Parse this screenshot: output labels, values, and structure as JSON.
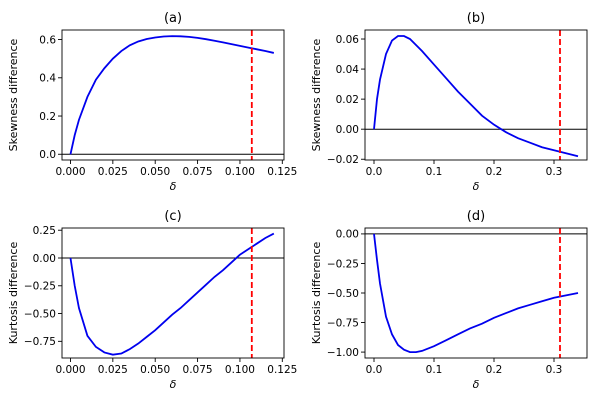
{
  "chart_data": [
    {
      "type": "line",
      "title": "(a)",
      "xlabel": "δ",
      "ylabel": "Skewness difference",
      "xlim": [
        -0.005,
        0.126
      ],
      "ylim": [
        -0.03,
        0.65
      ],
      "xticks": [
        0.0,
        0.025,
        0.05,
        0.075,
        0.1,
        0.125
      ],
      "xtick_labels": [
        "0.000",
        "0.025",
        "0.050",
        "0.075",
        "0.100",
        "0.125"
      ],
      "yticks": [
        0.0,
        0.2,
        0.4,
        0.6
      ],
      "ytick_labels": [
        "0.0",
        "0.2",
        "0.4",
        "0.6"
      ],
      "hline": 0,
      "vline": 0.107,
      "series": [
        {
          "name": "difference",
          "color": "#0000ee",
          "x": [
            0,
            0.0025,
            0.005,
            0.01,
            0.015,
            0.02,
            0.025,
            0.03,
            0.035,
            0.04,
            0.045,
            0.05,
            0.055,
            0.06,
            0.065,
            0.07,
            0.075,
            0.08,
            0.085,
            0.09,
            0.095,
            0.1,
            0.105,
            0.11,
            0.115,
            0.12
          ],
          "y": [
            0,
            0.1,
            0.18,
            0.3,
            0.39,
            0.45,
            0.5,
            0.54,
            0.57,
            0.59,
            0.603,
            0.611,
            0.616,
            0.618,
            0.617,
            0.614,
            0.609,
            0.602,
            0.594,
            0.585,
            0.576,
            0.567,
            0.558,
            0.549,
            0.54,
            0.53
          ]
        }
      ]
    },
    {
      "type": "line",
      "title": "(b)",
      "xlabel": "δ",
      "ylabel": "Skewness difference",
      "xlim": [
        -0.015,
        0.355
      ],
      "ylim": [
        -0.0205,
        0.066
      ],
      "xticks": [
        0.0,
        0.1,
        0.2,
        0.3
      ],
      "xtick_labels": [
        "0.0",
        "0.1",
        "0.2",
        "0.3"
      ],
      "yticks": [
        -0.02,
        0.0,
        0.02,
        0.04,
        0.06
      ],
      "ytick_labels": [
        "−0.02",
        "0.00",
        "0.02",
        "0.04",
        "0.06"
      ],
      "hline": 0,
      "vline": 0.31,
      "series": [
        {
          "name": "difference",
          "color": "#0000ee",
          "x": [
            0,
            0.005,
            0.01,
            0.02,
            0.03,
            0.04,
            0.05,
            0.06,
            0.07,
            0.08,
            0.1,
            0.12,
            0.14,
            0.16,
            0.18,
            0.2,
            0.22,
            0.24,
            0.26,
            0.28,
            0.3,
            0.32,
            0.34
          ],
          "y": [
            0,
            0.02,
            0.033,
            0.05,
            0.059,
            0.062,
            0.062,
            0.06,
            0.056,
            0.052,
            0.043,
            0.034,
            0.025,
            0.017,
            0.009,
            0.003,
            -0.002,
            -0.006,
            -0.009,
            -0.012,
            -0.014,
            -0.016,
            -0.018
          ]
        }
      ]
    },
    {
      "type": "line",
      "title": "(c)",
      "xlabel": "δ",
      "ylabel": "Kurtosis difference",
      "xlim": [
        -0.005,
        0.126
      ],
      "ylim": [
        -0.9,
        0.27
      ],
      "xticks": [
        0.0,
        0.025,
        0.05,
        0.075,
        0.1,
        0.125
      ],
      "xtick_labels": [
        "0.000",
        "0.025",
        "0.050",
        "0.075",
        "0.100",
        "0.125"
      ],
      "yticks": [
        -0.75,
        -0.5,
        -0.25,
        0.0,
        0.25
      ],
      "ytick_labels": [
        "−0.75",
        "−0.50",
        "−0.25",
        "0.00",
        "0.25"
      ],
      "hline": 0,
      "vline": 0.107,
      "series": [
        {
          "name": "difference",
          "color": "#0000ee",
          "x": [
            0,
            0.0025,
            0.005,
            0.01,
            0.015,
            0.02,
            0.025,
            0.03,
            0.035,
            0.04,
            0.045,
            0.05,
            0.055,
            0.06,
            0.065,
            0.07,
            0.075,
            0.08,
            0.085,
            0.09,
            0.095,
            0.1,
            0.105,
            0.11,
            0.115,
            0.12
          ],
          "y": [
            0,
            -0.25,
            -0.45,
            -0.7,
            -0.8,
            -0.85,
            -0.87,
            -0.86,
            -0.82,
            -0.77,
            -0.71,
            -0.65,
            -0.58,
            -0.51,
            -0.45,
            -0.38,
            -0.31,
            -0.24,
            -0.17,
            -0.11,
            -0.04,
            0.03,
            0.08,
            0.13,
            0.18,
            0.22
          ]
        }
      ]
    },
    {
      "type": "line",
      "title": "(d)",
      "xlabel": "δ",
      "ylabel": "Kurtosis difference",
      "xlim": [
        -0.015,
        0.355
      ],
      "ylim": [
        -1.05,
        0.05
      ],
      "xticks": [
        0.0,
        0.1,
        0.2,
        0.3
      ],
      "xtick_labels": [
        "0.0",
        "0.1",
        "0.2",
        "0.3"
      ],
      "yticks": [
        -1.0,
        -0.75,
        -0.5,
        -0.25,
        0.0
      ],
      "ytick_labels": [
        "−1.00",
        "−0.75",
        "−0.50",
        "−0.25",
        "0.00"
      ],
      "hline": 0,
      "vline": 0.31,
      "series": [
        {
          "name": "difference",
          "color": "#0000ee",
          "x": [
            0,
            0.005,
            0.01,
            0.02,
            0.03,
            0.04,
            0.05,
            0.06,
            0.07,
            0.08,
            0.1,
            0.12,
            0.14,
            0.16,
            0.18,
            0.2,
            0.22,
            0.24,
            0.26,
            0.28,
            0.3,
            0.32,
            0.34
          ],
          "y": [
            0,
            -0.22,
            -0.42,
            -0.7,
            -0.85,
            -0.94,
            -0.98,
            -1.0,
            -1.0,
            -0.99,
            -0.95,
            -0.9,
            -0.85,
            -0.8,
            -0.76,
            -0.71,
            -0.67,
            -0.63,
            -0.6,
            -0.57,
            -0.54,
            -0.52,
            -0.5
          ]
        }
      ]
    }
  ]
}
